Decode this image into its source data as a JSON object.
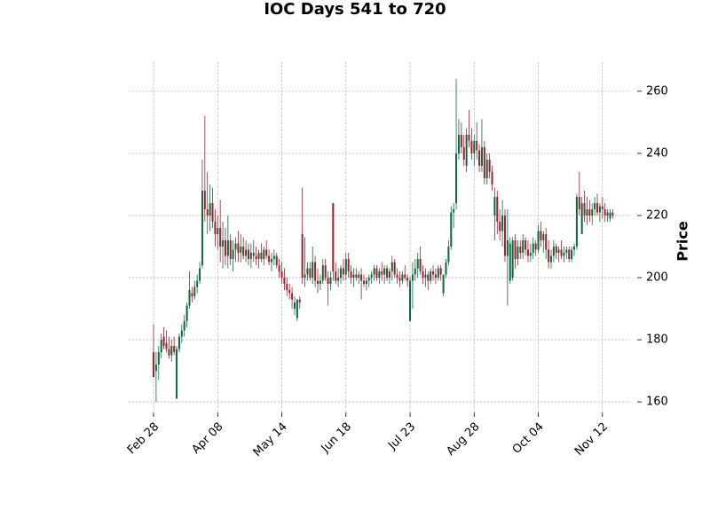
{
  "chart_data": {
    "type": "candlestick",
    "title": "IOC Days 541 to 720",
    "y_label": "Price",
    "up_color": "#0b6b3f",
    "down_color": "#a3202f",
    "grid": true,
    "y_axis_side": "right",
    "xlim": [
      -9.7,
      185.8
    ],
    "ylim": [
      156.6,
      269.4
    ],
    "xticks": [
      {
        "value": 0,
        "label": "Feb 28"
      },
      {
        "value": 25,
        "label": "Apr 08"
      },
      {
        "value": 50,
        "label": "May 14"
      },
      {
        "value": 75,
        "label": "Jun 18"
      },
      {
        "value": 100,
        "label": "Jul 23"
      },
      {
        "value": 125,
        "label": "Aug 28"
      },
      {
        "value": 150,
        "label": "Oct 04"
      },
      {
        "value": 175,
        "label": "Nov 12"
      }
    ],
    "yticks": [
      160,
      180,
      200,
      220,
      240,
      260
    ],
    "ohlc": [
      [
        176,
        185,
        168,
        168
      ],
      [
        170,
        176,
        160,
        172
      ],
      [
        172,
        178,
        167,
        176
      ],
      [
        176,
        182,
        174,
        180
      ],
      [
        181,
        184,
        177,
        178
      ],
      [
        179,
        183,
        176,
        177
      ],
      [
        177,
        181,
        174,
        175
      ],
      [
        175,
        180,
        173,
        178
      ],
      [
        178,
        181,
        175,
        176
      ],
      [
        161,
        178,
        161,
        177
      ],
      [
        177,
        182,
        176,
        181
      ],
      [
        181,
        185,
        179,
        183
      ],
      [
        183,
        188,
        181,
        186
      ],
      [
        186,
        192,
        184,
        191
      ],
      [
        191,
        202,
        190,
        196
      ],
      [
        195,
        197,
        192,
        194
      ],
      [
        194,
        199,
        193,
        197
      ],
      [
        197,
        201,
        195,
        199
      ],
      [
        199,
        205,
        198,
        203
      ],
      [
        204,
        238,
        203,
        228
      ],
      [
        228,
        252,
        218,
        222
      ],
      [
        222,
        234,
        214,
        220
      ],
      [
        220,
        230,
        215,
        224
      ],
      [
        224,
        229,
        216,
        218
      ],
      [
        218,
        222,
        210,
        214
      ],
      [
        214,
        220,
        209,
        216
      ],
      [
        216,
        225,
        205,
        210
      ],
      [
        210,
        218,
        203,
        212
      ],
      [
        212,
        216,
        204,
        207
      ],
      [
        207,
        220,
        203,
        212
      ],
      [
        212,
        214,
        204,
        206
      ],
      [
        206,
        212,
        202,
        209
      ],
      [
        209,
        213,
        205,
        211
      ],
      [
        211,
        215,
        205,
        208
      ],
      [
        208,
        214,
        205,
        210
      ],
      [
        210,
        213,
        206,
        207
      ],
      [
        207,
        212,
        205,
        209
      ],
      [
        209,
        211,
        204,
        206
      ],
      [
        206,
        211,
        203,
        208
      ],
      [
        208,
        212,
        205,
        207
      ],
      [
        207,
        210,
        204,
        206
      ],
      [
        206,
        209,
        203,
        208
      ],
      [
        208,
        211,
        205,
        206
      ],
      [
        206,
        210,
        204,
        209
      ],
      [
        209,
        212,
        206,
        207
      ],
      [
        207,
        209,
        204,
        205
      ],
      [
        205,
        208,
        202,
        206
      ],
      [
        206,
        209,
        204,
        207
      ],
      [
        207,
        208,
        203,
        204
      ],
      [
        204,
        206,
        200,
        202
      ],
      [
        202,
        205,
        198,
        200
      ],
      [
        200,
        203,
        196,
        198
      ],
      [
        198,
        200,
        194,
        196
      ],
      [
        196,
        198,
        193,
        195
      ],
      [
        195,
        197,
        190,
        193
      ],
      [
        190,
        194,
        188,
        192
      ],
      [
        187,
        193,
        186,
        193
      ],
      [
        193,
        194,
        190,
        192
      ],
      [
        214,
        229,
        198,
        200
      ],
      [
        200,
        213,
        197,
        201
      ],
      [
        201,
        205,
        199,
        203
      ],
      [
        203,
        205,
        199,
        200
      ],
      [
        200,
        210,
        198,
        205
      ],
      [
        205,
        207,
        197,
        199
      ],
      [
        199,
        203,
        195,
        198
      ],
      [
        198,
        201,
        196,
        199
      ],
      [
        199,
        206,
        198,
        204
      ],
      [
        204,
        206,
        199,
        200
      ],
      [
        200,
        202,
        191,
        198
      ],
      [
        198,
        202,
        196,
        200
      ],
      [
        224,
        224,
        199,
        202
      ],
      [
        202,
        205,
        198,
        199
      ],
      [
        199,
        203,
        197,
        200
      ],
      [
        200,
        204,
        198,
        203
      ],
      [
        203,
        206,
        199,
        201
      ],
      [
        201,
        208,
        199,
        206
      ],
      [
        206,
        208,
        200,
        202
      ],
      [
        202,
        204,
        198,
        200
      ],
      [
        200,
        203,
        197,
        201
      ],
      [
        201,
        203,
        199,
        200
      ],
      [
        200,
        202,
        198,
        201
      ],
      [
        201,
        203,
        193,
        199
      ],
      [
        199,
        201,
        197,
        198
      ],
      [
        198,
        200,
        196,
        199
      ],
      [
        199,
        201,
        197,
        200
      ],
      [
        200,
        202,
        198,
        201
      ],
      [
        201,
        204,
        199,
        203
      ],
      [
        203,
        204,
        199,
        200
      ],
      [
        200,
        203,
        198,
        202
      ],
      [
        202,
        205,
        199,
        201
      ],
      [
        201,
        204,
        198,
        203
      ],
      [
        203,
        204,
        199,
        200
      ],
      [
        200,
        203,
        198,
        202
      ],
      [
        202,
        207,
        199,
        205
      ],
      [
        205,
        206,
        200,
        201
      ],
      [
        201,
        203,
        198,
        200
      ],
      [
        200,
        202,
        197,
        199
      ],
      [
        199,
        202,
        198,
        201
      ],
      [
        201,
        204,
        199,
        200
      ],
      [
        200,
        201,
        197,
        199
      ],
      [
        186,
        200,
        186,
        199
      ],
      [
        199,
        205,
        190,
        201
      ],
      [
        201,
        206,
        199,
        203
      ],
      [
        203,
        208,
        200,
        206
      ],
      [
        206,
        210,
        201,
        202
      ],
      [
        202,
        204,
        198,
        200
      ],
      [
        200,
        203,
        197,
        201
      ],
      [
        201,
        202,
        196,
        199
      ],
      [
        199,
        203,
        198,
        202
      ],
      [
        202,
        204,
        199,
        201
      ],
      [
        201,
        203,
        198,
        200
      ],
      [
        200,
        204,
        199,
        203
      ],
      [
        203,
        204,
        199,
        201
      ],
      [
        195,
        201,
        194,
        201
      ],
      [
        201,
        206,
        200,
        205
      ],
      [
        205,
        212,
        204,
        210
      ],
      [
        210,
        223,
        209,
        221
      ],
      [
        221,
        224,
        216,
        222
      ],
      [
        224,
        264,
        222,
        240
      ],
      [
        240,
        251,
        238,
        246
      ],
      [
        246,
        250,
        240,
        242
      ],
      [
        242,
        246,
        236,
        238
      ],
      [
        236,
        248,
        234,
        246
      ],
      [
        246,
        254,
        242,
        244
      ],
      [
        244,
        248,
        238,
        240
      ],
      [
        240,
        246,
        236,
        244
      ],
      [
        244,
        250,
        238,
        241
      ],
      [
        241,
        243,
        234,
        236
      ],
      [
        236,
        251,
        234,
        242
      ],
      [
        242,
        244,
        230,
        232
      ],
      [
        232,
        240,
        230,
        238
      ],
      [
        238,
        240,
        232,
        234
      ],
      [
        234,
        236,
        228,
        230
      ],
      [
        220,
        229,
        212,
        226
      ],
      [
        226,
        228,
        214,
        218
      ],
      [
        218,
        222,
        212,
        215
      ],
      [
        215,
        225,
        210,
        220
      ],
      [
        220,
        222,
        205,
        207
      ],
      [
        207,
        222,
        191,
        212
      ],
      [
        199,
        213,
        198,
        211
      ],
      [
        200,
        213,
        199,
        212
      ],
      [
        212,
        214,
        203,
        206
      ],
      [
        206,
        212,
        204,
        210
      ],
      [
        210,
        212,
        206,
        208
      ],
      [
        208,
        214,
        206,
        212
      ],
      [
        212,
        213,
        207,
        209
      ],
      [
        209,
        212,
        205,
        207
      ],
      [
        207,
        211,
        205,
        208
      ],
      [
        208,
        213,
        206,
        211
      ],
      [
        211,
        212,
        207,
        209
      ],
      [
        209,
        217,
        208,
        215
      ],
      [
        215,
        218,
        210,
        212
      ],
      [
        212,
        215,
        208,
        214
      ],
      [
        214,
        216,
        206,
        209
      ],
      [
        209,
        212,
        203,
        205
      ],
      [
        205,
        209,
        203,
        207
      ],
      [
        207,
        212,
        205,
        210
      ],
      [
        210,
        211,
        206,
        208
      ],
      [
        208,
        210,
        205,
        209
      ],
      [
        209,
        212,
        206,
        207
      ],
      [
        207,
        210,
        205,
        208
      ],
      [
        208,
        210,
        206,
        209
      ],
      [
        209,
        210,
        205,
        206
      ],
      [
        206,
        210,
        205,
        209
      ],
      [
        209,
        211,
        207,
        210
      ],
      [
        210,
        227,
        209,
        226
      ],
      [
        226,
        234,
        220,
        222
      ],
      [
        214,
        226,
        214,
        224
      ],
      [
        224,
        228,
        218,
        220
      ],
      [
        220,
        226,
        217,
        222
      ],
      [
        222,
        225,
        218,
        220
      ],
      [
        220,
        224,
        217,
        222
      ],
      [
        222,
        226,
        220,
        224
      ],
      [
        224,
        227,
        220,
        221
      ],
      [
        221,
        224,
        218,
        223
      ],
      [
        223,
        226,
        219,
        222
      ],
      [
        222,
        224,
        218,
        220
      ],
      [
        220,
        222,
        218,
        221
      ],
      [
        219,
        222,
        218,
        221
      ],
      [
        221,
        222,
        219,
        220
      ]
    ]
  }
}
